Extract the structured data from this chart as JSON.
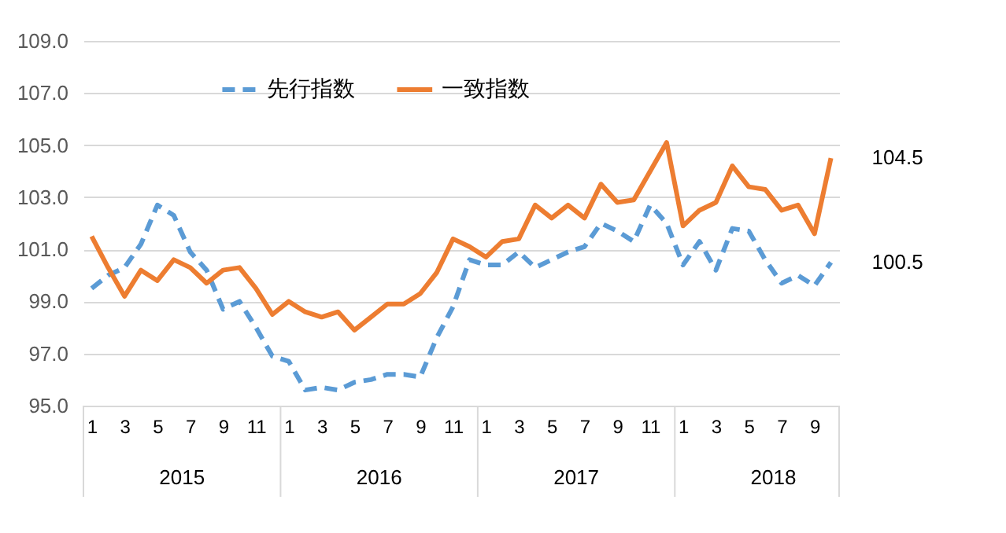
{
  "chart_data": {
    "type": "line",
    "categories": [
      "1",
      null,
      "3",
      null,
      "5",
      null,
      "7",
      null,
      "9",
      null,
      "11",
      null,
      "1",
      null,
      "3",
      null,
      "5",
      null,
      "7",
      null,
      "9",
      null,
      "11",
      null,
      "1",
      null,
      "3",
      null,
      "5",
      null,
      "7",
      null,
      "9",
      null,
      "11",
      null,
      "1",
      null,
      "3",
      null,
      "5",
      null,
      "7",
      null,
      "9",
      null
    ],
    "series": [
      {
        "name": "先行指数",
        "color": "#5b9bd5",
        "line_style": "dashed",
        "values": [
          99.5,
          100.0,
          100.3,
          101.2,
          102.7,
          102.3,
          100.9,
          100.2,
          98.7,
          99.0,
          98.0,
          96.9,
          96.7,
          95.6,
          95.7,
          95.6,
          95.9,
          96.0,
          96.2,
          96.2,
          96.1,
          97.6,
          98.8,
          100.6,
          100.4,
          100.4,
          100.9,
          100.3,
          100.6,
          100.9,
          101.1,
          102.0,
          101.7,
          101.3,
          102.7,
          102.0,
          100.4,
          101.3,
          100.2,
          101.8,
          101.7,
          100.6,
          99.7,
          100.0,
          99.6,
          100.5
        ]
      },
      {
        "name": "一致指数",
        "color": "#ed7d31",
        "line_style": "solid",
        "values": [
          101.5,
          100.3,
          99.2,
          100.2,
          99.8,
          100.6,
          100.3,
          99.7,
          100.2,
          100.3,
          99.5,
          98.5,
          99.0,
          98.6,
          98.4,
          98.6,
          97.9,
          98.4,
          98.9,
          98.9,
          99.3,
          100.1,
          101.4,
          101.1,
          100.7,
          101.3,
          101.4,
          102.7,
          102.2,
          102.7,
          102.2,
          103.5,
          102.8,
          102.9,
          104.0,
          105.1,
          101.9,
          102.5,
          102.8,
          104.2,
          103.4,
          103.3,
          102.5,
          102.7,
          101.6,
          104.5
        ]
      }
    ],
    "ylim": [
      95,
      109
    ],
    "yticks": [
      {
        "value": 95,
        "label": "95.0"
      },
      {
        "value": 97,
        "label": "97.0"
      },
      {
        "value": 99,
        "label": "99.0"
      },
      {
        "value": 101,
        "label": "101.0"
      },
      {
        "value": 103,
        "label": "103.0"
      },
      {
        "value": 105,
        "label": "105.0"
      },
      {
        "value": 107,
        "label": "107.0"
      },
      {
        "value": 109,
        "label": "109.0"
      }
    ],
    "grid": "y",
    "legend": "top",
    "annotations": [
      "2015",
      "2016",
      "2017",
      "2018",
      "104.5",
      "100.5"
    ]
  }
}
